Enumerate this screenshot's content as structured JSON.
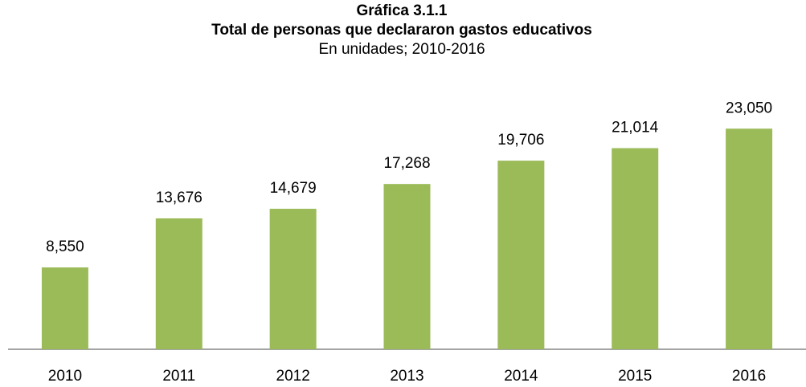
{
  "chart_data": {
    "type": "bar",
    "title": "Gráfica 3.1.1",
    "subtitle": "Total de personas que declararon gastos educativos",
    "note": "En unidades; 2010-2016",
    "categories": [
      "2010",
      "2011",
      "2012",
      "2013",
      "2014",
      "2015",
      "2016"
    ],
    "values": [
      8550,
      13676,
      14679,
      17268,
      19706,
      21014,
      23050
    ],
    "value_labels": [
      "8,550",
      "13,676",
      "14,679",
      "17,268",
      "19,706",
      "21,014",
      "23,050"
    ],
    "color": "#9bbb59",
    "ylim": [
      0,
      25000
    ]
  }
}
